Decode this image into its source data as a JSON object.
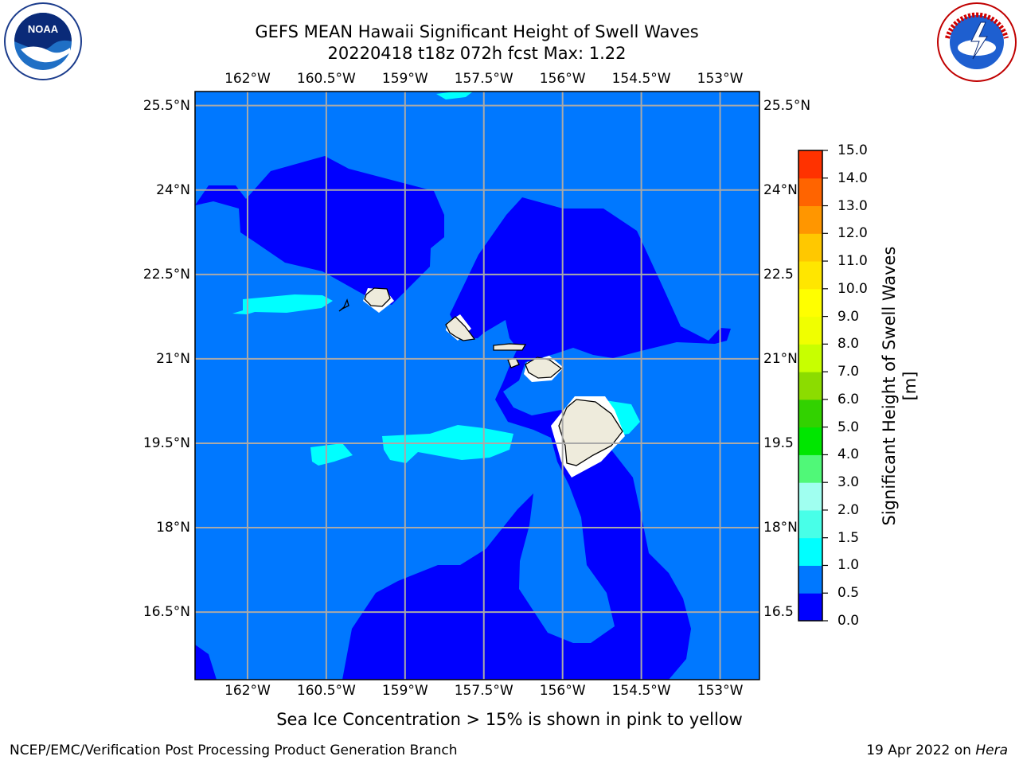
{
  "title": {
    "line1": "GEFS MEAN Hawaii Significant Height of Swell Waves",
    "line2": "20220418 t18z 072h fcst   Max: 1.22"
  },
  "logos": {
    "left": "noaa-logo",
    "right": "nws-logo"
  },
  "axes": {
    "lon_labels": [
      "162°W",
      "160.5°W",
      "159°W",
      "157.5°W",
      "156°W",
      "154.5°W",
      "153°W"
    ],
    "lat_labels": [
      "25.5°N",
      "24°N",
      "22.5°N",
      "21°N",
      "19.5°N",
      "18°N",
      "16.5°N"
    ],
    "lat_labels_right": [
      "25.5°N",
      "24°N",
      "22.5",
      "21°N",
      "19.5",
      "18°N",
      "16.5"
    ],
    "lon_values": [
      -162,
      -160.5,
      -159,
      -157.5,
      -156,
      -154.5,
      -153
    ],
    "lat_values": [
      25.5,
      24,
      22.5,
      21,
      19.5,
      18,
      16.5
    ],
    "lon_range": [
      -163,
      -152.25
    ],
    "lat_range": [
      15.3,
      25.75
    ],
    "grid": true
  },
  "colorbar": {
    "title": "Significant Height of Swell Waves [m]",
    "tick_labels": [
      "15.0",
      "14.0",
      "13.0",
      "12.0",
      "11.0",
      "10.0",
      "9.0",
      "8.0",
      "7.0",
      "6.0",
      "5.0",
      "4.0",
      "3.0",
      "2.0",
      "1.5",
      "1.0",
      "0.5",
      "0.0"
    ],
    "levels": [
      0.0,
      0.5,
      1.0,
      1.5,
      2.0,
      3.0,
      4.0,
      5.0,
      6.0,
      7.0,
      8.0,
      9.0,
      10.0,
      11.0,
      12.0,
      13.0,
      14.0,
      15.0
    ],
    "colors": [
      "#0000ff",
      "#0078ff",
      "#00ffff",
      "#48ffe8",
      "#a0fff0",
      "#50f878",
      "#00e600",
      "#32d200",
      "#8cdc00",
      "#c8ff00",
      "#f0ff00",
      "#ffff00",
      "#ffe600",
      "#ffc800",
      "#ff9600",
      "#ff6400",
      "#ff3200"
    ]
  },
  "caption": "Sea Ice Concentration > 15% is shown in pink to yellow",
  "footer": {
    "left": "NCEP/EMC/Verification Post Processing Product Generation Branch",
    "right_prefix": "19 Apr 2022 on ",
    "right_machine": "Hera"
  }
}
